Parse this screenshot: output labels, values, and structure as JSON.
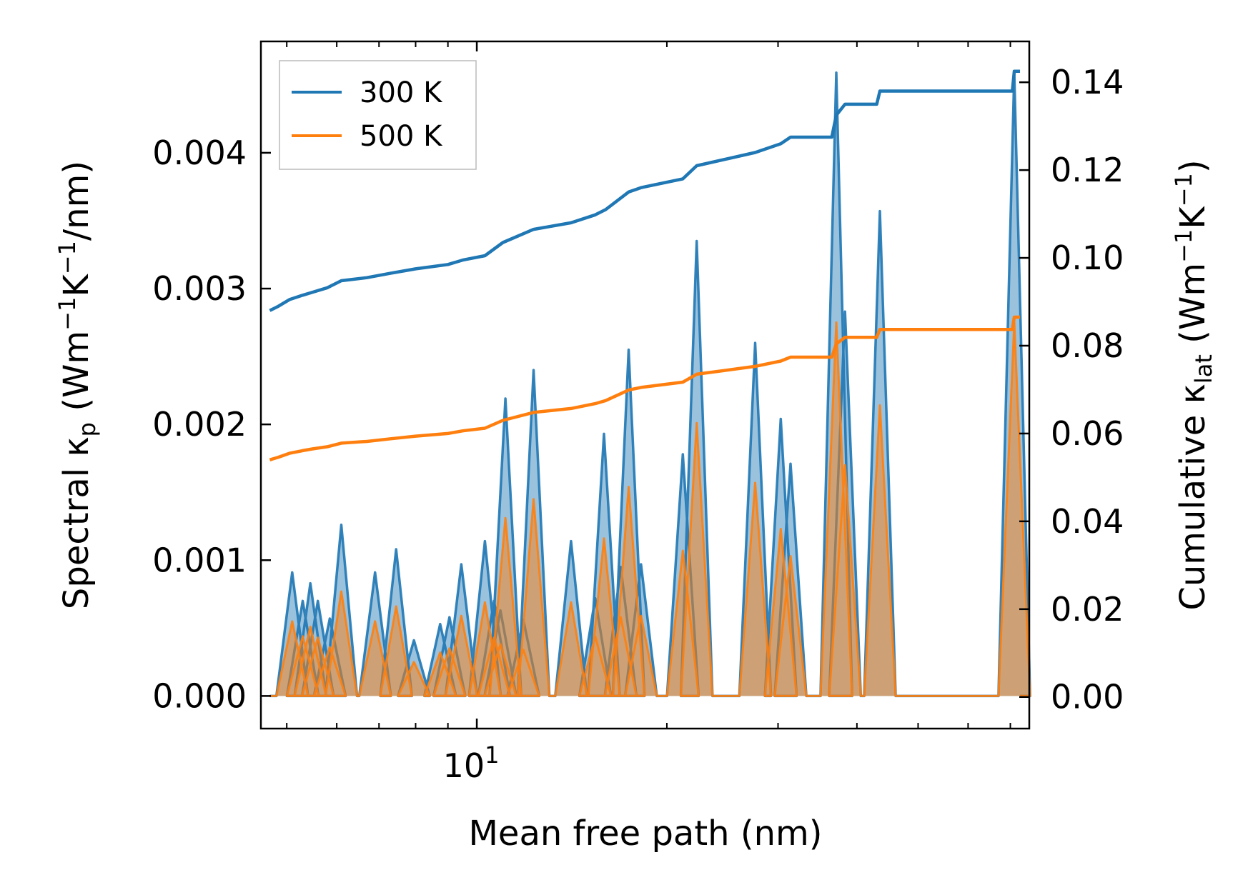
{
  "chart_data": {
    "type": "line",
    "x_scale": "log",
    "xlabel": "Mean free path (nm)",
    "ylabel_left": {
      "main": "Spectral κ",
      "sub": "p",
      "unit_pre": " (Wm",
      "sup1": "−1",
      "mid": "K",
      "sup2": "−1",
      "unit_post": "/nm)"
    },
    "ylabel_right": {
      "main": "Cumulative κ",
      "sub": "lat",
      "unit_pre": " (Wm",
      "sup1": "−1",
      "mid": "K",
      "sup2": "−1",
      "unit_post": ")"
    },
    "xlim": [
      4.55,
      75
    ],
    "ylim_left": [
      -0.00024,
      0.00482
    ],
    "ylim_right": [
      -0.0072,
      0.1493
    ],
    "x_ticks": [
      {
        "value": 10,
        "base": "10",
        "exp": "1"
      }
    ],
    "x_minor_ticks": [
      5,
      6,
      7,
      8,
      9,
      20,
      30,
      40,
      50,
      60,
      70
    ],
    "y_ticks_left": [
      {
        "value": 0.0,
        "label": "0.000"
      },
      {
        "value": 0.001,
        "label": "0.001"
      },
      {
        "value": 0.002,
        "label": "0.002"
      },
      {
        "value": 0.003,
        "label": "0.003"
      },
      {
        "value": 0.004,
        "label": "0.004"
      }
    ],
    "y_ticks_right": [
      {
        "value": 0.0,
        "label": "0.00"
      },
      {
        "value": 0.02,
        "label": "0.02"
      },
      {
        "value": 0.04,
        "label": "0.04"
      },
      {
        "value": 0.06,
        "label": "0.06"
      },
      {
        "value": 0.08,
        "label": "0.08"
      },
      {
        "value": 0.1,
        "label": "0.10"
      },
      {
        "value": 0.12,
        "label": "0.12"
      },
      {
        "value": 0.14,
        "label": "0.14"
      }
    ],
    "legend": {
      "placement": "top-left",
      "entries": [
        {
          "label": "300 K",
          "color": "#1f77b4"
        },
        {
          "label": "500 K",
          "color": "#ff7f0e"
        }
      ]
    },
    "spectral_peaks": [
      {
        "x": 5.1,
        "v300": 0.00091,
        "v500": 0.00055
      },
      {
        "x": 5.3,
        "v300": 0.0007,
        "v500": 0.00044
      },
      {
        "x": 5.45,
        "v300": 0.00083,
        "v500": 0.00051
      },
      {
        "x": 5.6,
        "v300": 0.0007,
        "v500": 0.00043
      },
      {
        "x": 5.85,
        "v300": 0.00057,
        "v500": 0.00036
      },
      {
        "x": 6.1,
        "v300": 0.00126,
        "v500": 0.00077
      },
      {
        "x": 6.9,
        "v300": 0.00091,
        "v500": 0.00055
      },
      {
        "x": 7.45,
        "v300": 0.00108,
        "v500": 0.00066
      },
      {
        "x": 7.95,
        "v300": 0.00041,
        "v500": 0.00025
      },
      {
        "x": 8.75,
        "v300": 0.00053,
        "v500": 0.00032
      },
      {
        "x": 9.05,
        "v300": 0.00058,
        "v500": 0.00035
      },
      {
        "x": 9.45,
        "v300": 0.00097,
        "v500": 0.00059
      },
      {
        "x": 10.3,
        "v300": 0.00114,
        "v500": 0.00069
      },
      {
        "x": 10.65,
        "v300": 0.0007,
        "v500": 0.00043
      },
      {
        "x": 10.9,
        "v300": 0.00063,
        "v500": 0.00038
      },
      {
        "x": 11.1,
        "v300": 0.00219,
        "v500": 0.00131
      },
      {
        "x": 11.85,
        "v300": 0.00056,
        "v500": 0.00034
      },
      {
        "x": 12.3,
        "v300": 0.0024,
        "v500": 0.00145
      },
      {
        "x": 14.1,
        "v300": 0.00114,
        "v500": 0.00069
      },
      {
        "x": 15.4,
        "v300": 0.00072,
        "v500": 0.00044
      },
      {
        "x": 15.9,
        "v300": 0.00193,
        "v500": 0.00116
      },
      {
        "x": 16.9,
        "v300": 0.00095,
        "v500": 0.00058
      },
      {
        "x": 17.4,
        "v300": 0.00255,
        "v500": 0.00154
      },
      {
        "x": 18.2,
        "v300": 0.00097,
        "v500": 0.00059
      },
      {
        "x": 21.2,
        "v300": 0.00178,
        "v500": 0.00107
      },
      {
        "x": 22.3,
        "v300": 0.00335,
        "v500": 0.00201
      },
      {
        "x": 27.6,
        "v300": 0.0026,
        "v500": 0.00157
      },
      {
        "x": 30.3,
        "v300": 0.00204,
        "v500": 0.00123
      },
      {
        "x": 31.4,
        "v300": 0.00171,
        "v500": 0.00103
      },
      {
        "x": 37.1,
        "v300": 0.00459,
        "v500": 0.00275
      },
      {
        "x": 38.3,
        "v300": 0.00283,
        "v500": 0.0017
      },
      {
        "x": 43.5,
        "v300": 0.00357,
        "v500": 0.00214
      },
      {
        "x": 71.0,
        "v300": 0.00459,
        "v500": 0.00275
      }
    ],
    "series": [
      {
        "name": "300 K",
        "color": "#1f77b4",
        "cumulative": [
          [
            4.7,
            0.088
          ],
          [
            4.85,
            0.089
          ],
          [
            5.05,
            0.0905
          ],
          [
            5.3,
            0.0915
          ],
          [
            5.5,
            0.0922
          ],
          [
            5.8,
            0.0932
          ],
          [
            6.1,
            0.0948
          ],
          [
            6.7,
            0.0955
          ],
          [
            7.3,
            0.0965
          ],
          [
            8.0,
            0.0975
          ],
          [
            9.0,
            0.0985
          ],
          [
            9.5,
            0.0995
          ],
          [
            10.3,
            0.1005
          ],
          [
            11.0,
            0.1035
          ],
          [
            12.3,
            0.1065
          ],
          [
            14.1,
            0.108
          ],
          [
            15.4,
            0.1098
          ],
          [
            16.0,
            0.111
          ],
          [
            17.4,
            0.115
          ],
          [
            18.2,
            0.116
          ],
          [
            21.2,
            0.118
          ],
          [
            22.3,
            0.121
          ],
          [
            27.6,
            0.124
          ],
          [
            30.3,
            0.126
          ],
          [
            31.4,
            0.1275
          ],
          [
            36.5,
            0.1275
          ],
          [
            37.1,
            0.1325
          ],
          [
            38.3,
            0.135
          ],
          [
            43.0,
            0.135
          ],
          [
            43.5,
            0.138
          ],
          [
            70.5,
            0.138
          ],
          [
            71.0,
            0.1425
          ],
          [
            72.5,
            0.1425
          ]
        ]
      },
      {
        "name": "500 K",
        "color": "#ff7f0e",
        "cumulative": [
          [
            4.7,
            0.054
          ],
          [
            4.85,
            0.0546
          ],
          [
            5.05,
            0.0555
          ],
          [
            5.3,
            0.0561
          ],
          [
            5.5,
            0.0565
          ],
          [
            5.8,
            0.057
          ],
          [
            6.1,
            0.0578
          ],
          [
            6.7,
            0.0582
          ],
          [
            7.3,
            0.0588
          ],
          [
            8.0,
            0.0594
          ],
          [
            9.0,
            0.06
          ],
          [
            9.5,
            0.0606
          ],
          [
            10.3,
            0.0612
          ],
          [
            11.0,
            0.063
          ],
          [
            12.3,
            0.0648
          ],
          [
            14.1,
            0.0657
          ],
          [
            15.4,
            0.0668
          ],
          [
            16.0,
            0.0675
          ],
          [
            17.4,
            0.0699
          ],
          [
            18.2,
            0.0705
          ],
          [
            21.2,
            0.0717
          ],
          [
            22.3,
            0.0735
          ],
          [
            27.6,
            0.0753
          ],
          [
            30.3,
            0.0765
          ],
          [
            31.4,
            0.0774
          ],
          [
            36.5,
            0.0774
          ],
          [
            37.1,
            0.0804
          ],
          [
            38.3,
            0.0819
          ],
          [
            43.0,
            0.0819
          ],
          [
            43.5,
            0.0837
          ],
          [
            70.5,
            0.0837
          ],
          [
            71.0,
            0.0865
          ],
          [
            72.5,
            0.0865
          ]
        ]
      }
    ]
  }
}
